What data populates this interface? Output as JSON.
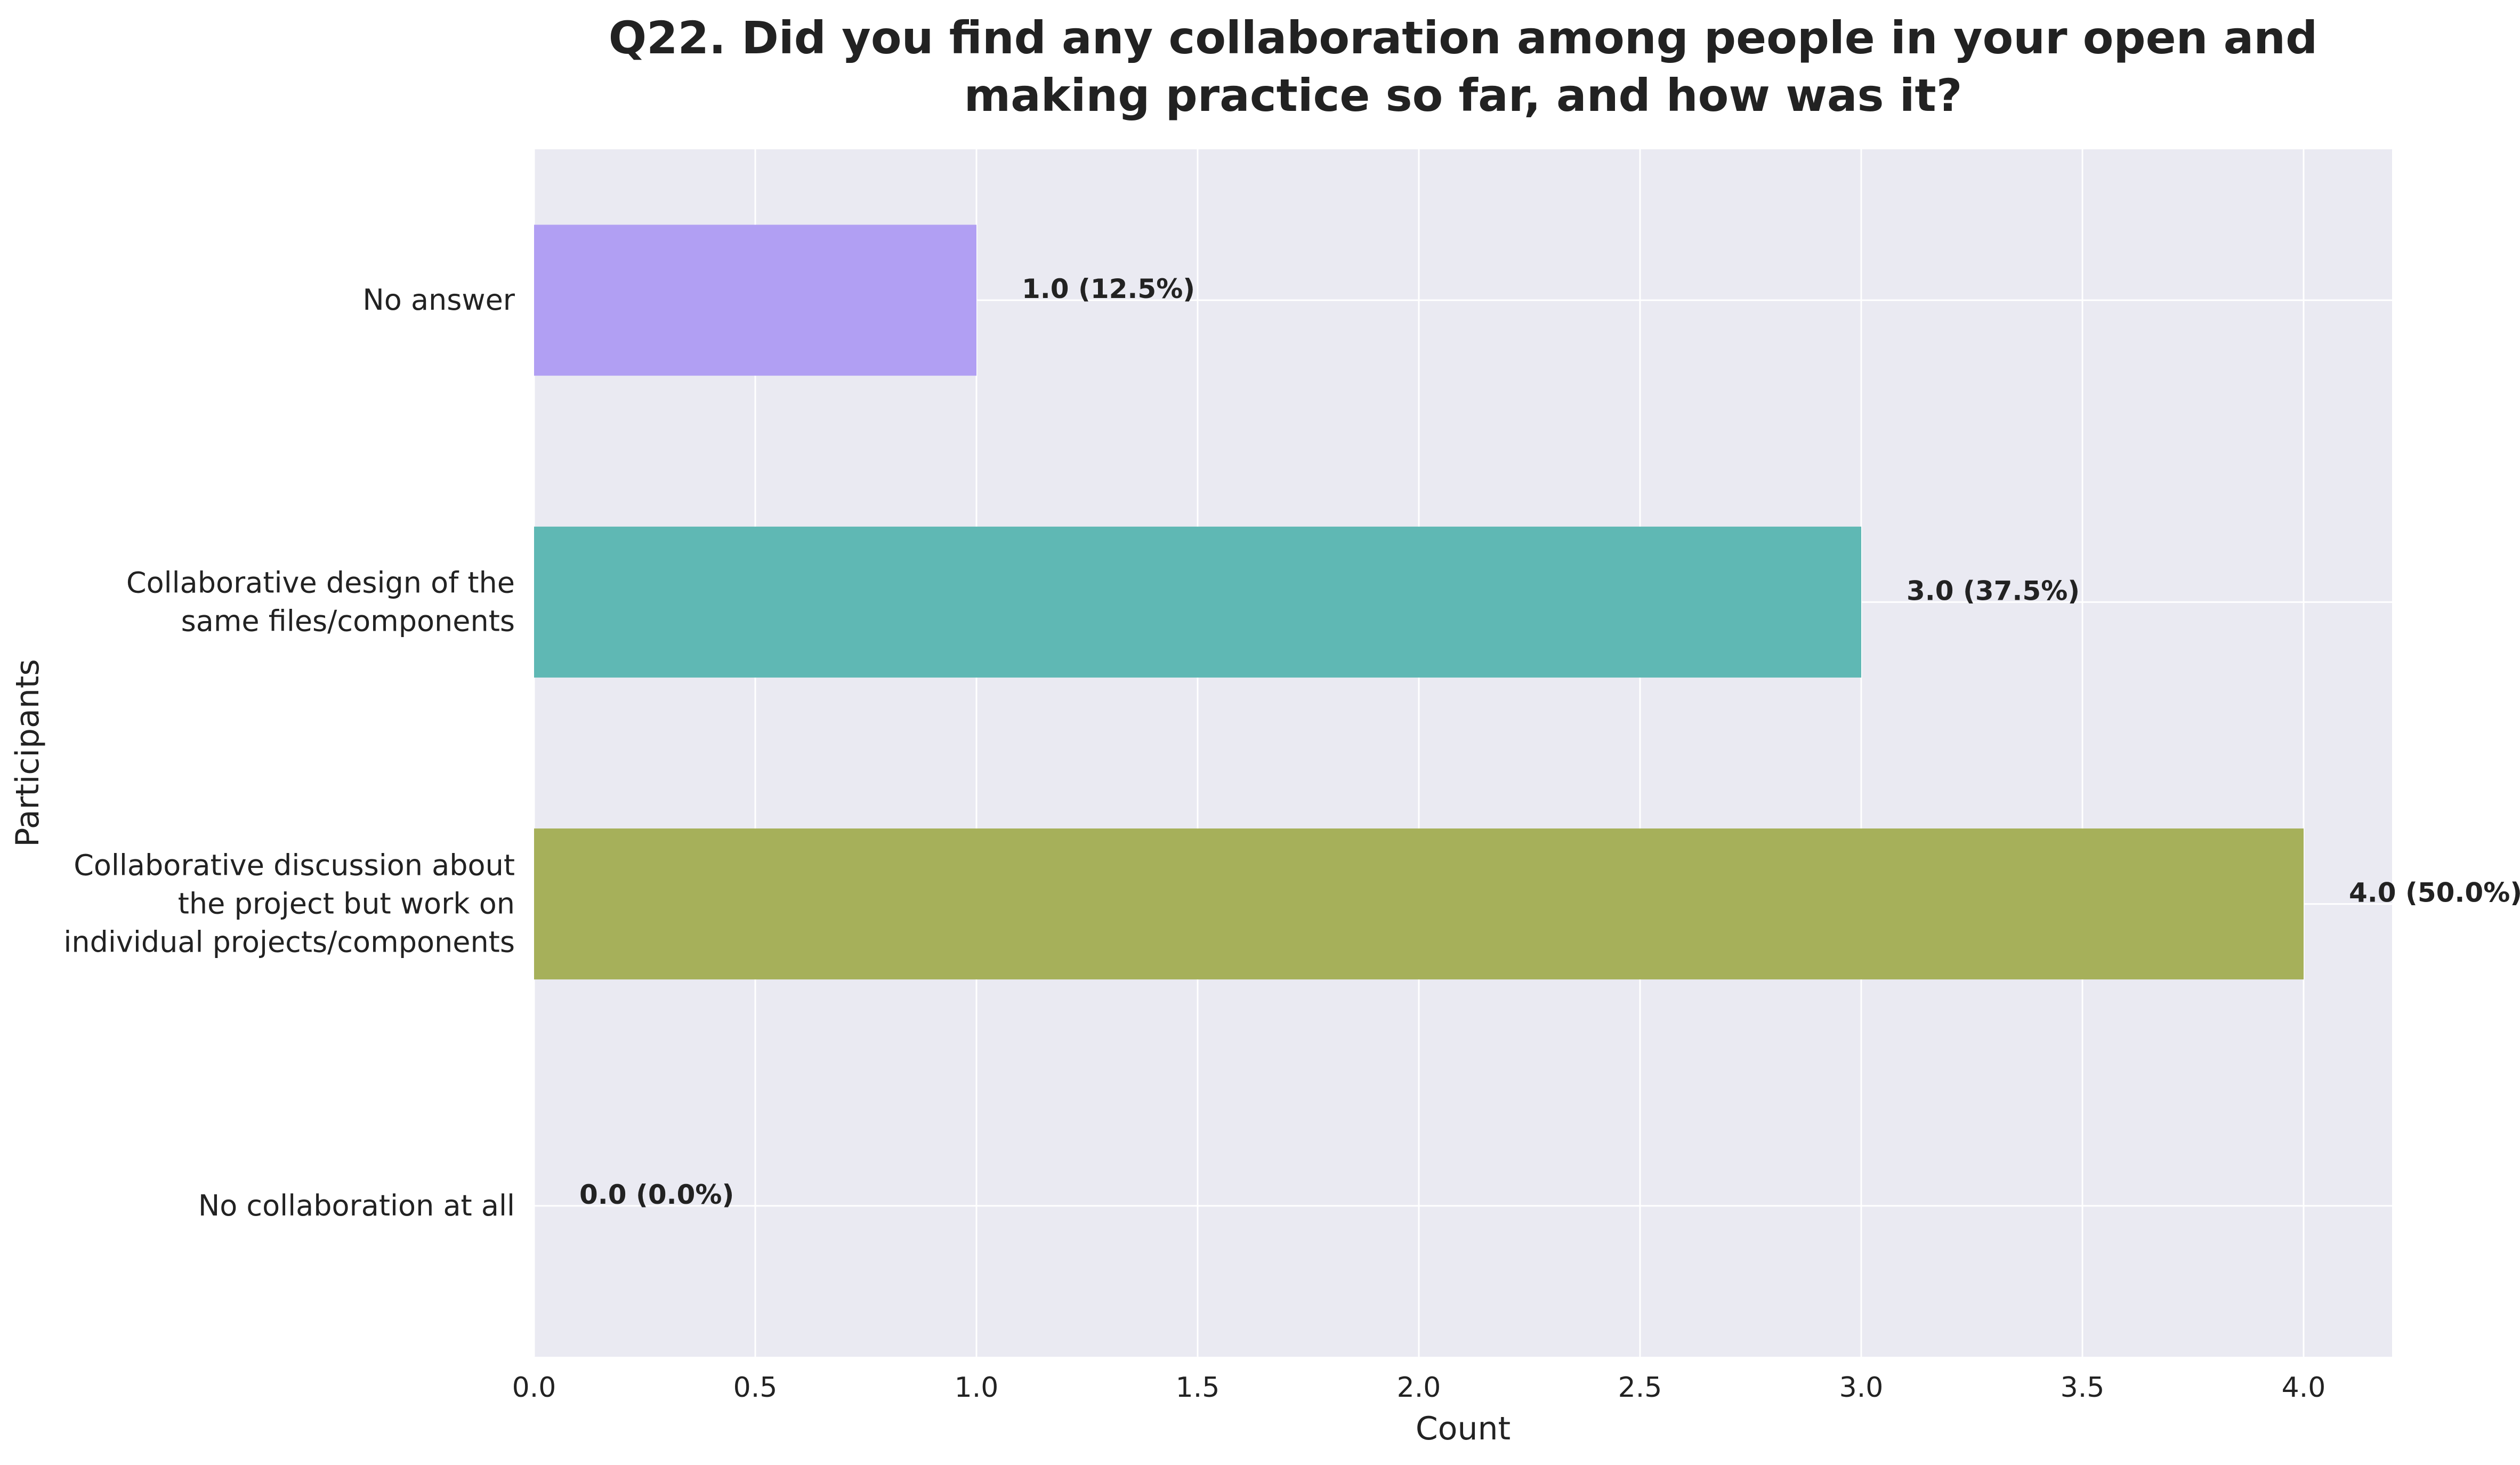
{
  "chart_data": {
    "type": "bar",
    "orientation": "horizontal",
    "title_lines": [
      "Q22. Did you find any collaboration among people in your open and",
      "making practice so far, and how was it?"
    ],
    "xlabel": "Count",
    "ylabel": "Participants",
    "xlim": [
      0,
      4.2
    ],
    "xticks": [
      "0.0",
      "0.5",
      "1.0",
      "1.5",
      "2.0",
      "2.5",
      "3.0",
      "3.5",
      "4.0"
    ],
    "grid": true,
    "categories": [
      {
        "lines": [
          "No answer"
        ]
      },
      {
        "lines": [
          "Collaborative design of the",
          "same files/components"
        ]
      },
      {
        "lines": [
          "Collaborative discussion about",
          "the project but work on",
          "individual projects/components"
        ]
      },
      {
        "lines": [
          "No collaboration at all"
        ]
      }
    ],
    "values": [
      1.0,
      3.0,
      4.0,
      0.0
    ],
    "labels": [
      "1.0 (12.5%)",
      "3.0 (37.5%)",
      "4.0 (50.0%)",
      "0.0 (0.0%)"
    ],
    "colors": [
      "#b19ff3",
      "#5fb8b4",
      "#a6b05a",
      "#e9a0c8"
    ],
    "background": "#eaeaf2"
  }
}
